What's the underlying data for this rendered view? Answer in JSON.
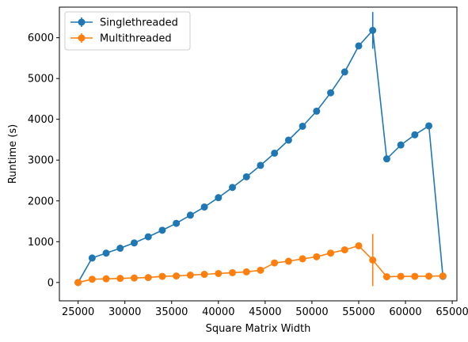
{
  "chart_data": {
    "type": "line",
    "title": "",
    "xlabel": "Square Matrix Width",
    "ylabel": "Runtime (s)",
    "xlim": [
      23000,
      65500
    ],
    "ylim": [
      -450,
      6750
    ],
    "xticks": [
      25000,
      30000,
      35000,
      40000,
      45000,
      50000,
      55000,
      60000,
      65000
    ],
    "yticks": [
      0,
      1000,
      2000,
      3000,
      4000,
      5000,
      6000
    ],
    "grid": false,
    "legend": "top-left",
    "error_bars": true,
    "series": [
      {
        "name": "Singlethreaded",
        "color": "#1f77b4",
        "x": [
          25000,
          26500,
          28000,
          29500,
          31000,
          32500,
          34000,
          35500,
          37000,
          38500,
          40000,
          41500,
          43000,
          44500,
          46000,
          47500,
          49000,
          50500,
          52000,
          53500,
          55000,
          56500,
          58000,
          59500,
          61000,
          62500,
          64000
        ],
        "values": [
          0,
          600,
          720,
          840,
          970,
          1120,
          1280,
          1450,
          1650,
          1850,
          2080,
          2330,
          2590,
          2870,
          3170,
          3490,
          3830,
          4200,
          4650,
          5160,
          5800,
          6180,
          3030,
          3370,
          3620,
          3840,
          150
        ],
        "errors": [
          0,
          0,
          0,
          0,
          0,
          0,
          0,
          0,
          0,
          0,
          0,
          0,
          0,
          0,
          0,
          0,
          0,
          0,
          0,
          0,
          80,
          450,
          0,
          0,
          0,
          0,
          0
        ]
      },
      {
        "name": "Multithreaded",
        "color": "#ff7f0e",
        "x": [
          25000,
          26500,
          28000,
          29500,
          31000,
          32500,
          34000,
          35500,
          37000,
          38500,
          40000,
          41500,
          43000,
          44500,
          46000,
          47500,
          49000,
          50500,
          52000,
          53500,
          55000,
          56500,
          58000,
          59500,
          61000,
          62500,
          64000
        ],
        "values": [
          0,
          80,
          90,
          100,
          110,
          120,
          150,
          160,
          180,
          200,
          220,
          240,
          260,
          300,
          480,
          520,
          580,
          630,
          720,
          800,
          900,
          550,
          140,
          150,
          150,
          155,
          160
        ],
        "errors": [
          0,
          0,
          0,
          0,
          0,
          0,
          0,
          0,
          0,
          0,
          0,
          0,
          0,
          0,
          0,
          0,
          0,
          0,
          0,
          0,
          0,
          640,
          0,
          0,
          0,
          0,
          0
        ]
      }
    ]
  }
}
